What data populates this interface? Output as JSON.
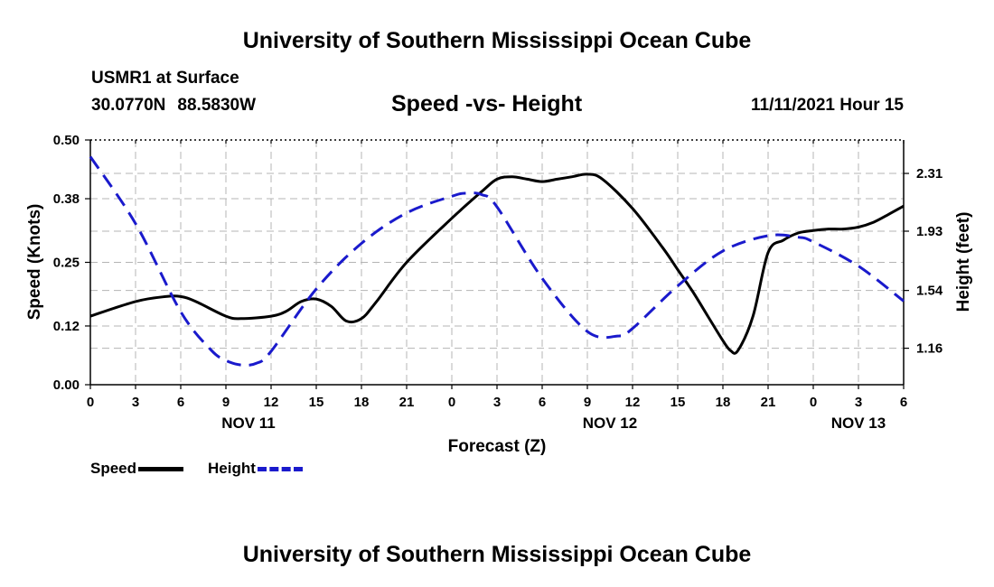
{
  "page_title": "University of Southern Mississippi Ocean Cube",
  "footer_title": "University of Southern Mississippi Ocean Cube",
  "station": "USMR1 at Surface",
  "latitude": "30.0770N",
  "longitude": "88.5830W",
  "datetime": "11/11/2021 Hour 15",
  "colors": {
    "speed": "#000000",
    "height": "#1a1acc",
    "grid": "#b4b4b4"
  },
  "legend": {
    "speed_label": "Speed",
    "height_label": "Height"
  },
  "chart_data": {
    "type": "line",
    "title": "Speed -vs- Height",
    "xlabel": "Forecast (Z)",
    "ylabel": "Speed (Knots)",
    "y2label": "Height (feet)",
    "x_hours_range": [
      0,
      54
    ],
    "x_ticks": [
      {
        "h": 0,
        "label": "0"
      },
      {
        "h": 3,
        "label": "3"
      },
      {
        "h": 6,
        "label": "6"
      },
      {
        "h": 9,
        "label": "9"
      },
      {
        "h": 12,
        "label": "12"
      },
      {
        "h": 15,
        "label": "15"
      },
      {
        "h": 18,
        "label": "18"
      },
      {
        "h": 21,
        "label": "21"
      },
      {
        "h": 24,
        "label": "0"
      },
      {
        "h": 27,
        "label": "3"
      },
      {
        "h": 30,
        "label": "6"
      },
      {
        "h": 33,
        "label": "9"
      },
      {
        "h": 36,
        "label": "12"
      },
      {
        "h": 39,
        "label": "15"
      },
      {
        "h": 42,
        "label": "18"
      },
      {
        "h": 45,
        "label": "21"
      },
      {
        "h": 48,
        "label": "0"
      },
      {
        "h": 51,
        "label": "3"
      },
      {
        "h": 54,
        "label": "6"
      }
    ],
    "day_labels": [
      {
        "h": 10.5,
        "label": "NOV 11"
      },
      {
        "h": 34.5,
        "label": "NOV 12"
      },
      {
        "h": 51,
        "label": "NOV 13"
      }
    ],
    "ylim": [
      0,
      0.5
    ],
    "y_ticks": [
      "0.00",
      "0.12",
      "0.25",
      "0.38",
      "0.50"
    ],
    "y2lim": [
      0.92,
      2.53
    ],
    "y2_ticks": [
      "1.16",
      "1.54",
      "1.93",
      "2.31"
    ],
    "series": [
      {
        "name": "Speed",
        "axis": "left",
        "x": [
          0,
          3,
          5,
          6,
          7,
          9,
          10,
          12,
          13,
          14,
          15,
          16,
          17,
          18,
          19,
          21,
          24,
          26,
          27,
          28,
          29,
          30,
          31,
          32,
          33,
          34,
          36,
          38,
          39,
          40,
          41,
          42,
          42.5,
          43,
          44,
          45,
          46,
          47,
          48,
          49,
          50,
          51,
          52,
          53,
          54
        ],
        "values": [
          0.14,
          0.17,
          0.18,
          0.18,
          0.17,
          0.14,
          0.135,
          0.14,
          0.15,
          0.17,
          0.175,
          0.16,
          0.13,
          0.135,
          0.17,
          0.25,
          0.34,
          0.395,
          0.42,
          0.425,
          0.42,
          0.415,
          0.42,
          0.425,
          0.43,
          0.42,
          0.36,
          0.28,
          0.235,
          0.19,
          0.14,
          0.09,
          0.07,
          0.07,
          0.14,
          0.27,
          0.295,
          0.31,
          0.315,
          0.318,
          0.318,
          0.322,
          0.332,
          0.348,
          0.365
        ]
      },
      {
        "name": "Height",
        "axis": "right",
        "x": [
          0,
          3,
          6,
          8,
          9,
          10,
          11,
          12,
          15,
          18,
          21,
          24,
          25,
          26,
          27,
          30,
          33,
          35,
          36,
          39,
          42,
          45,
          47,
          48,
          51,
          54
        ],
        "values": [
          2.42,
          1.98,
          1.4,
          1.15,
          1.08,
          1.05,
          1.06,
          1.14,
          1.55,
          1.85,
          2.05,
          2.16,
          2.18,
          2.17,
          2.09,
          1.62,
          1.27,
          1.24,
          1.29,
          1.57,
          1.8,
          1.9,
          1.89,
          1.86,
          1.7,
          1.47
        ]
      }
    ]
  }
}
